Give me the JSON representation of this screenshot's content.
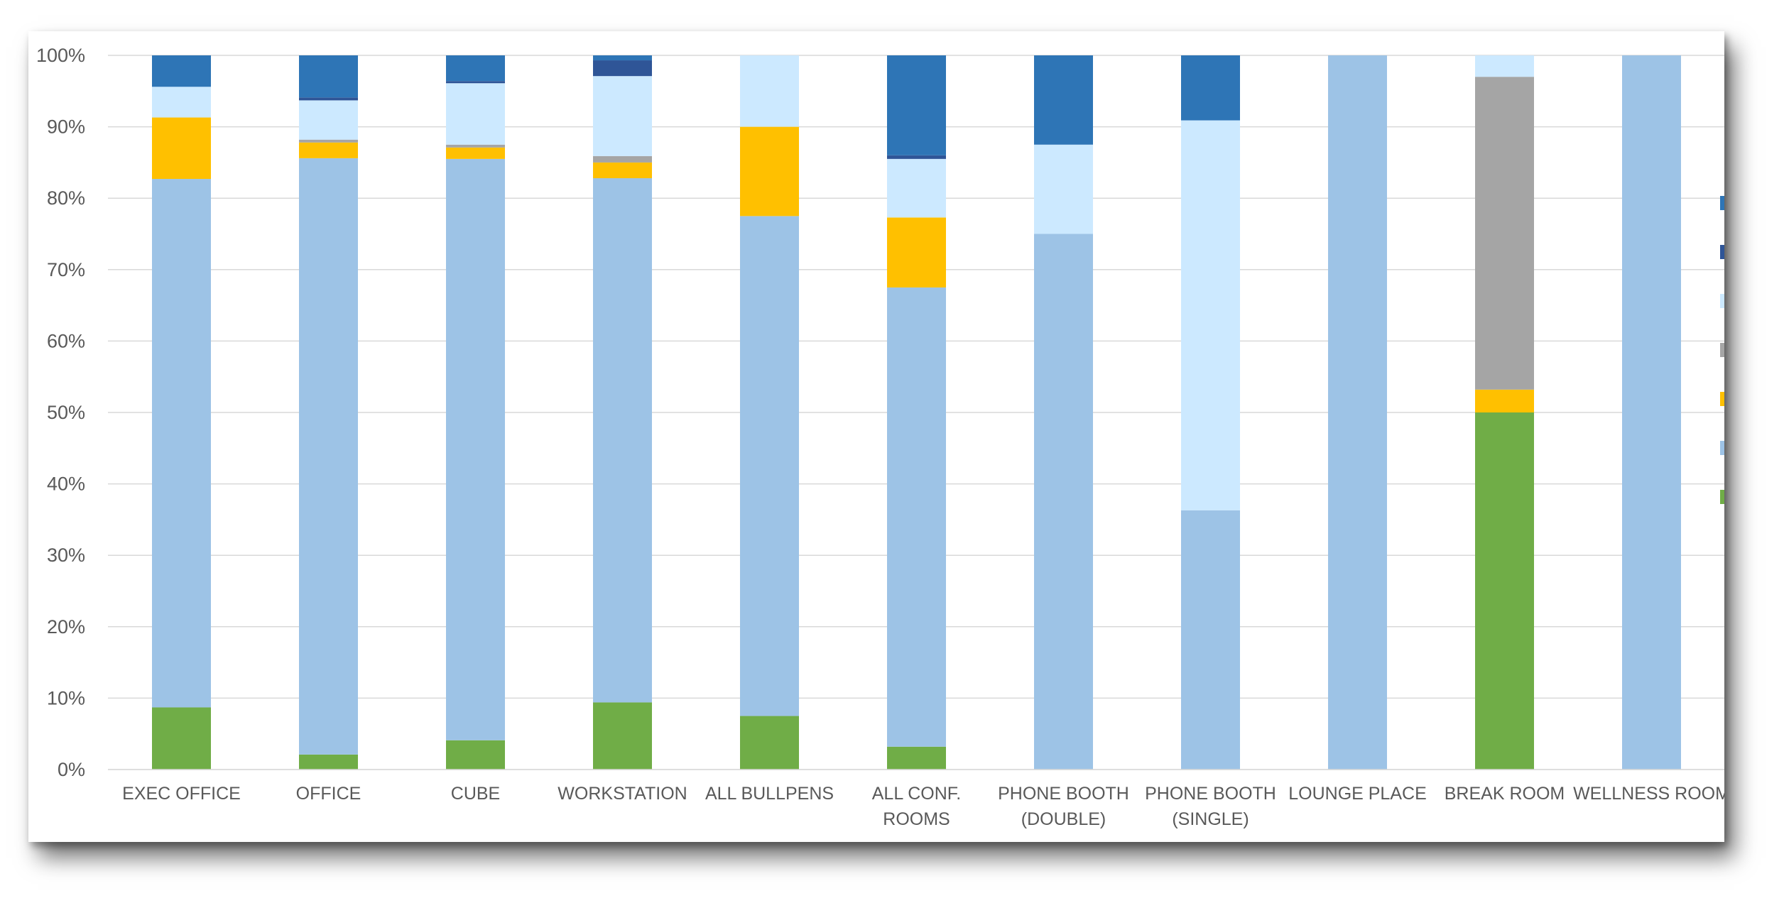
{
  "chart_data": {
    "type": "bar",
    "stacked": true,
    "percent": true,
    "title": "",
    "xlabel": "",
    "ylabel": "",
    "ylim": [
      0,
      100
    ],
    "ytick_labels": [
      "0%",
      "10%",
      "20%",
      "30%",
      "40%",
      "50%",
      "60%",
      "70%",
      "80%",
      "90%",
      "100%"
    ],
    "grid": true,
    "legend": "right",
    "categories": [
      [
        "EXEC OFFICE"
      ],
      [
        "OFFICE"
      ],
      [
        "CUBE"
      ],
      [
        "WORKSTATION"
      ],
      [
        "ALL BULLPENS"
      ],
      [
        "ALL CONF.",
        "ROOMS"
      ],
      [
        "PHONE BOOTH",
        "(DOUBLE)"
      ],
      [
        "PHONE BOOTH",
        "(SINGLE)"
      ],
      [
        "LOUNGE PLACE"
      ],
      [
        "BREAK ROOM"
      ],
      [
        "WELLNESS ROOM"
      ]
    ],
    "series": [
      {
        "color": "#70AD47",
        "values": [
          8.7,
          2.1,
          4.1,
          9.4,
          7.5,
          3.2,
          0,
          0,
          0,
          50.0,
          0
        ]
      },
      {
        "color": "#9DC3E6",
        "values": [
          74.0,
          83.5,
          81.4,
          73.4,
          70.0,
          64.3,
          75.0,
          36.3,
          100.0,
          0,
          100.0
        ]
      },
      {
        "color": "#FFC000",
        "values": [
          8.6,
          2.2,
          1.6,
          2.2,
          12.5,
          9.8,
          0,
          0,
          0,
          3.2,
          0
        ]
      },
      {
        "color": "#A5A5A5",
        "values": [
          0,
          0.4,
          0.4,
          0.9,
          0,
          0,
          0,
          0,
          0,
          43.8,
          0
        ]
      },
      {
        "color": "#CCE9FF",
        "values": [
          4.3,
          5.5,
          8.6,
          11.2,
          10.0,
          8.2,
          12.5,
          54.6,
          0,
          3.0,
          0
        ]
      },
      {
        "color": "#2F5597",
        "values": [
          0,
          0.4,
          0.3,
          2.2,
          0,
          0.5,
          0,
          0,
          0,
          0,
          0
        ]
      },
      {
        "color": "#2E75B6",
        "values": [
          4.4,
          5.9,
          3.6,
          0.7,
          0,
          14.0,
          12.5,
          9.1,
          0,
          0,
          0
        ]
      }
    ]
  }
}
